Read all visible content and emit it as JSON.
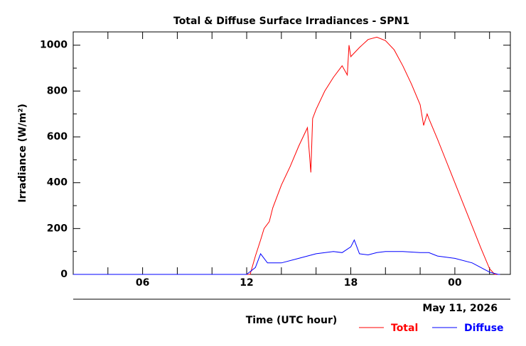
{
  "chart_data": {
    "type": "line",
    "title": "Total & Diffuse Surface Irradiances - SPN1",
    "xlabel": "Time (UTC hour)",
    "ylabel": "Irradiance (W/m²)",
    "date_label": "May 11, 2026",
    "xlim": [
      2,
      27.2
    ],
    "ylim": [
      0,
      1058
    ],
    "xticks": [
      {
        "value": 6,
        "label": "06"
      },
      12,
      18,
      {
        "value": 24,
        "label": "00"
      }
    ],
    "xminorticks": [
      4,
      8,
      10,
      14,
      16,
      20,
      22,
      26
    ],
    "yticks": [
      0,
      200,
      400,
      600,
      800,
      1000
    ],
    "yminorticks": [
      100,
      300,
      500,
      700,
      900
    ],
    "series": [
      {
        "name": "Total",
        "color": "#ff0000",
        "x": [
          2,
          12.2,
          12.5,
          12.8,
          13,
          13.3,
          13.5,
          14,
          14.5,
          15,
          15.5,
          15.7,
          15.8,
          16,
          16.5,
          17,
          17.5,
          17.8,
          17.9,
          18,
          18.5,
          19,
          19.5,
          20,
          20.5,
          21,
          21.5,
          22,
          22.2,
          22.4,
          22.5,
          23,
          23.5,
          24,
          24.5,
          25,
          25.5,
          26,
          26.3,
          26.6
        ],
        "values": [
          0,
          0,
          80,
          150,
          200,
          230,
          290,
          390,
          470,
          560,
          640,
          445,
          680,
          720,
          800,
          860,
          910,
          870,
          1000,
          950,
          990,
          1025,
          1035,
          1020,
          980,
          910,
          830,
          740,
          650,
          700,
          680,
          590,
          495,
          400,
          305,
          210,
          115,
          25,
          0,
          0
        ]
      },
      {
        "name": "Diffuse",
        "color": "#0000ff",
        "x": [
          2,
          12,
          12.5,
          12.8,
          13.2,
          14,
          15,
          16,
          17,
          17.5,
          18,
          18.2,
          18.5,
          19,
          19.5,
          20,
          21,
          22,
          22.5,
          23,
          24,
          25,
          25.5,
          26,
          26.5,
          26.6
        ],
        "values": [
          0,
          0,
          30,
          90,
          50,
          50,
          70,
          90,
          100,
          95,
          120,
          150,
          90,
          85,
          95,
          100,
          100,
          95,
          95,
          80,
          70,
          50,
          30,
          10,
          0,
          0
        ]
      }
    ]
  }
}
